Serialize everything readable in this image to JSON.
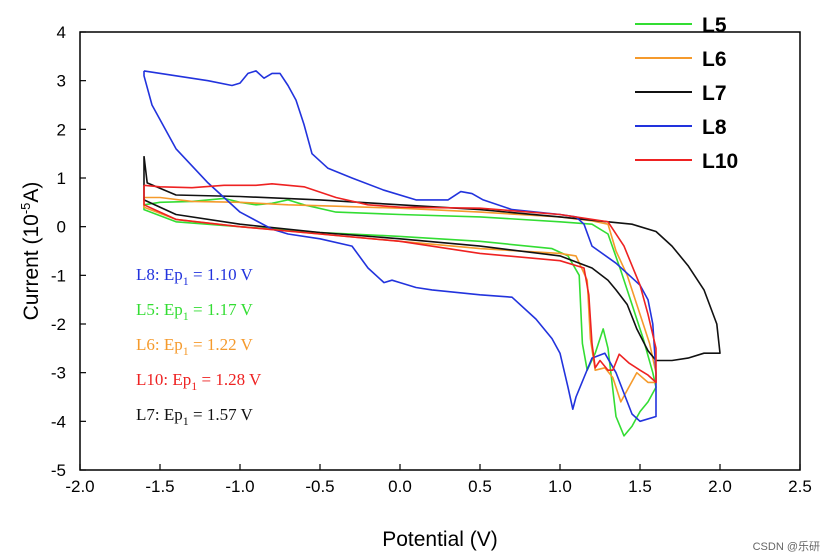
{
  "chart_data": {
    "type": "line",
    "title": "",
    "xlabel": "Potential (V)",
    "ylabel_main": "Current (10",
    "ylabel_sup": "-5",
    "ylabel_end": "A)",
    "xlim": [
      -2.0,
      2.5
    ],
    "ylim": [
      -5,
      4
    ],
    "xticks": [
      "-2.0",
      "-1.5",
      "-1.0",
      "-0.5",
      "0.0",
      "0.5",
      "1.0",
      "1.5",
      "2.0",
      "2.5"
    ],
    "yticks": [
      "4",
      "3",
      "2",
      "1",
      "0",
      "-1",
      "-2",
      "-3",
      "-4",
      "-5"
    ],
    "legend_position": "top-right",
    "series": [
      {
        "name": "L5",
        "color": "#33dd33",
        "points": [
          [
            -1.6,
            0.45
          ],
          [
            -1.5,
            0.5
          ],
          [
            -1.3,
            0.52
          ],
          [
            -1.1,
            0.58
          ],
          [
            -1.0,
            0.5
          ],
          [
            -0.9,
            0.45
          ],
          [
            -0.8,
            0.48
          ],
          [
            -0.7,
            0.55
          ],
          [
            -0.6,
            0.45
          ],
          [
            -0.4,
            0.3
          ],
          [
            0.0,
            0.25
          ],
          [
            0.5,
            0.2
          ],
          [
            1.0,
            0.1
          ],
          [
            1.2,
            0.05
          ],
          [
            1.3,
            -0.15
          ],
          [
            1.38,
            -0.9
          ],
          [
            1.45,
            -1.6
          ],
          [
            1.52,
            -2.3
          ],
          [
            1.58,
            -3.0
          ],
          [
            1.6,
            -3.3
          ],
          [
            1.55,
            -3.6
          ],
          [
            1.5,
            -3.8
          ],
          [
            1.45,
            -4.1
          ],
          [
            1.4,
            -4.3
          ],
          [
            1.35,
            -3.9
          ],
          [
            1.3,
            -2.5
          ],
          [
            1.27,
            -2.1
          ],
          [
            1.22,
            -2.6
          ],
          [
            1.17,
            -2.95
          ],
          [
            1.14,
            -2.4
          ],
          [
            1.12,
            -1.0
          ],
          [
            1.05,
            -0.6
          ],
          [
            0.95,
            -0.45
          ],
          [
            0.5,
            -0.3
          ],
          [
            0.0,
            -0.2
          ],
          [
            -0.5,
            -0.12
          ],
          [
            -1.0,
            0.0
          ],
          [
            -1.4,
            0.1
          ],
          [
            -1.6,
            0.35
          ]
        ]
      },
      {
        "name": "L6",
        "color": "#f59a2c",
        "points": [
          [
            -1.6,
            0.6
          ],
          [
            -1.5,
            0.6
          ],
          [
            -1.3,
            0.52
          ],
          [
            -1.0,
            0.5
          ],
          [
            -0.7,
            0.45
          ],
          [
            -0.4,
            0.42
          ],
          [
            0.0,
            0.38
          ],
          [
            0.5,
            0.3
          ],
          [
            1.0,
            0.2
          ],
          [
            1.2,
            0.12
          ],
          [
            1.3,
            0.05
          ],
          [
            1.35,
            -0.5
          ],
          [
            1.42,
            -1.0
          ],
          [
            1.5,
            -1.8
          ],
          [
            1.56,
            -2.4
          ],
          [
            1.6,
            -3.0
          ],
          [
            1.6,
            -3.2
          ],
          [
            1.55,
            -3.2
          ],
          [
            1.48,
            -3.0
          ],
          [
            1.43,
            -3.3
          ],
          [
            1.38,
            -3.6
          ],
          [
            1.33,
            -3.1
          ],
          [
            1.28,
            -2.9
          ],
          [
            1.22,
            -2.95
          ],
          [
            1.19,
            -2.3
          ],
          [
            1.17,
            -1.1
          ],
          [
            1.1,
            -0.6
          ],
          [
            1.0,
            -0.55
          ],
          [
            0.5,
            -0.45
          ],
          [
            0.0,
            -0.3
          ],
          [
            -0.5,
            -0.15
          ],
          [
            -1.0,
            0.0
          ],
          [
            -1.4,
            0.15
          ],
          [
            -1.6,
            0.4
          ]
        ]
      },
      {
        "name": "L7",
        "color": "#111111",
        "points": [
          [
            -1.6,
            1.45
          ],
          [
            -1.58,
            0.9
          ],
          [
            -1.4,
            0.65
          ],
          [
            -1.0,
            0.62
          ],
          [
            -0.5,
            0.55
          ],
          [
            0.0,
            0.45
          ],
          [
            0.5,
            0.35
          ],
          [
            1.0,
            0.2
          ],
          [
            1.3,
            0.1
          ],
          [
            1.45,
            0.05
          ],
          [
            1.6,
            -0.1
          ],
          [
            1.7,
            -0.4
          ],
          [
            1.8,
            -0.8
          ],
          [
            1.9,
            -1.3
          ],
          [
            1.98,
            -2.0
          ],
          [
            2.0,
            -2.6
          ],
          [
            1.9,
            -2.6
          ],
          [
            1.8,
            -2.7
          ],
          [
            1.7,
            -2.75
          ],
          [
            1.6,
            -2.75
          ],
          [
            1.55,
            -2.55
          ],
          [
            1.48,
            -2.1
          ],
          [
            1.42,
            -1.6
          ],
          [
            1.35,
            -1.3
          ],
          [
            1.3,
            -1.1
          ],
          [
            1.2,
            -0.85
          ],
          [
            1.0,
            -0.6
          ],
          [
            0.5,
            -0.4
          ],
          [
            0.0,
            -0.25
          ],
          [
            -0.5,
            -0.12
          ],
          [
            -1.0,
            0.05
          ],
          [
            -1.4,
            0.25
          ],
          [
            -1.6,
            0.55
          ]
        ]
      },
      {
        "name": "L8",
        "color": "#2233dd",
        "points": [
          [
            -1.6,
            3.2
          ],
          [
            -1.4,
            3.1
          ],
          [
            -1.2,
            3.0
          ],
          [
            -1.05,
            2.9
          ],
          [
            -1.0,
            2.95
          ],
          [
            -0.95,
            3.15
          ],
          [
            -0.9,
            3.2
          ],
          [
            -0.85,
            3.05
          ],
          [
            -0.8,
            3.15
          ],
          [
            -0.75,
            3.15
          ],
          [
            -0.7,
            2.9
          ],
          [
            -0.65,
            2.6
          ],
          [
            -0.6,
            2.1
          ],
          [
            -0.55,
            1.5
          ],
          [
            -0.45,
            1.2
          ],
          [
            -0.3,
            1.0
          ],
          [
            -0.1,
            0.75
          ],
          [
            0.1,
            0.55
          ],
          [
            0.3,
            0.55
          ],
          [
            0.38,
            0.72
          ],
          [
            0.45,
            0.68
          ],
          [
            0.52,
            0.55
          ],
          [
            0.7,
            0.35
          ],
          [
            1.0,
            0.25
          ],
          [
            1.1,
            0.2
          ],
          [
            1.15,
            0.05
          ],
          [
            1.2,
            -0.4
          ],
          [
            1.35,
            -0.75
          ],
          [
            1.5,
            -1.2
          ],
          [
            1.55,
            -1.5
          ],
          [
            1.58,
            -2.0
          ],
          [
            1.6,
            -3.0
          ],
          [
            1.6,
            -3.9
          ],
          [
            1.5,
            -4.0
          ],
          [
            1.45,
            -3.85
          ],
          [
            1.35,
            -3.0
          ],
          [
            1.28,
            -2.6
          ],
          [
            1.2,
            -2.7
          ],
          [
            1.15,
            -3.1
          ],
          [
            1.1,
            -3.5
          ],
          [
            1.08,
            -3.75
          ],
          [
            1.05,
            -3.3
          ],
          [
            1.0,
            -2.6
          ],
          [
            0.95,
            -2.3
          ],
          [
            0.85,
            -1.9
          ],
          [
            0.7,
            -1.45
          ],
          [
            0.5,
            -1.4
          ],
          [
            0.2,
            -1.3
          ],
          [
            0.1,
            -1.25
          ],
          [
            0.0,
            -1.15
          ],
          [
            -0.05,
            -1.1
          ],
          [
            -0.1,
            -1.15
          ],
          [
            -0.2,
            -0.85
          ],
          [
            -0.3,
            -0.4
          ],
          [
            -0.5,
            -0.25
          ],
          [
            -0.7,
            -0.15
          ],
          [
            -0.8,
            -0.05
          ],
          [
            -1.0,
            0.3
          ],
          [
            -1.2,
            0.9
          ],
          [
            -1.4,
            1.6
          ],
          [
            -1.55,
            2.5
          ],
          [
            -1.6,
            3.1
          ]
        ]
      },
      {
        "name": "L10",
        "color": "#ee2222",
        "points": [
          [
            -1.6,
            0.85
          ],
          [
            -1.5,
            0.82
          ],
          [
            -1.3,
            0.8
          ],
          [
            -1.1,
            0.85
          ],
          [
            -0.9,
            0.85
          ],
          [
            -0.8,
            0.88
          ],
          [
            -0.6,
            0.82
          ],
          [
            -0.4,
            0.6
          ],
          [
            -0.2,
            0.45
          ],
          [
            0.0,
            0.4
          ],
          [
            0.5,
            0.38
          ],
          [
            1.0,
            0.25
          ],
          [
            1.3,
            0.1
          ],
          [
            1.4,
            -0.4
          ],
          [
            1.5,
            -1.2
          ],
          [
            1.55,
            -1.8
          ],
          [
            1.6,
            -2.5
          ],
          [
            1.6,
            -3.2
          ],
          [
            1.55,
            -3.05
          ],
          [
            1.5,
            -2.95
          ],
          [
            1.43,
            -2.8
          ],
          [
            1.37,
            -2.62
          ],
          [
            1.33,
            -2.95
          ],
          [
            1.3,
            -2.95
          ],
          [
            1.25,
            -2.75
          ],
          [
            1.22,
            -2.9
          ],
          [
            1.2,
            -2.4
          ],
          [
            1.18,
            -1.4
          ],
          [
            1.15,
            -0.85
          ],
          [
            1.0,
            -0.7
          ],
          [
            0.5,
            -0.55
          ],
          [
            0.0,
            -0.3
          ],
          [
            -0.5,
            -0.15
          ],
          [
            -1.0,
            0.0
          ],
          [
            -1.4,
            0.15
          ],
          [
            -1.6,
            0.45
          ]
        ]
      }
    ],
    "annotations": [
      {
        "series": "L8",
        "label": "L8: Ep",
        "sub": "1",
        "value": " = 1.10 V",
        "color": "#2233dd"
      },
      {
        "series": "L5",
        "label": "L5: Ep",
        "sub": "1",
        "value": " = 1.17 V",
        "color": "#33dd33"
      },
      {
        "series": "L6",
        "label": "L6: Ep",
        "sub": "1",
        "value": " = 1.22 V",
        "color": "#f59a2c"
      },
      {
        "series": "L10",
        "label": "L10: Ep",
        "sub": "1",
        "value": " = 1.28 V",
        "color": "#ee2222"
      },
      {
        "series": "L7",
        "label": "L7: Ep",
        "sub": "1",
        "value": " = 1.57 V",
        "color": "#111111"
      }
    ]
  },
  "watermark": "CSDN @乐研"
}
